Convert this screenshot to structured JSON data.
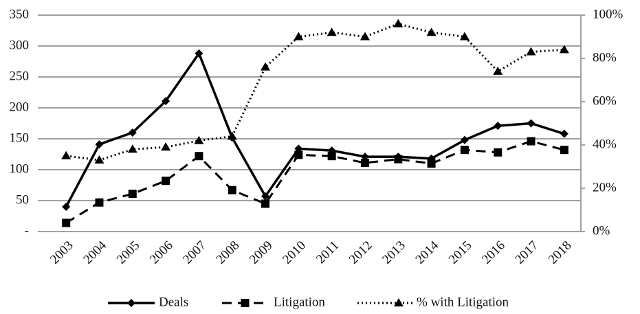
{
  "chart_data": {
    "type": "line",
    "categories": [
      "2003",
      "2004",
      "2005",
      "2006",
      "2007",
      "2008",
      "2009",
      "2010",
      "2011",
      "2012",
      "2013",
      "2014",
      "2015",
      "2016",
      "2017",
      "2018"
    ],
    "series": [
      {
        "name": "Deals",
        "color": "#000000",
        "line_style": "solid",
        "marker": "diamond",
        "axis": "y",
        "values": [
          40,
          141,
          160,
          211,
          288,
          152,
          57,
          134,
          131,
          121,
          121,
          118,
          148,
          171,
          175,
          158
        ]
      },
      {
        "name": "Litigation",
        "color": "#000000",
        "line_style": "dashed",
        "marker": "square",
        "axis": "y",
        "values": [
          14,
          47,
          61,
          82,
          122,
          67,
          45,
          124,
          122,
          111,
          117,
          110,
          132,
          128,
          146,
          132
        ]
      },
      {
        "name": "% with Litigation",
        "color": "#000000",
        "line_style": "dotted",
        "marker": "triangle",
        "axis": "y2",
        "values": [
          35,
          33,
          38,
          39,
          42,
          44,
          76,
          90,
          92,
          90,
          96,
          92,
          90,
          74,
          83,
          84
        ]
      }
    ],
    "ylim": [
      0,
      350
    ],
    "yticks": [
      {
        "value": 0,
        "label": "-"
      },
      50,
      100,
      150,
      200,
      250,
      300,
      350
    ],
    "y2lim": [
      0,
      100
    ],
    "y2ticks": [
      {
        "value": 0,
        "label": "0%"
      },
      {
        "value": 20,
        "label": "20%"
      },
      {
        "value": 40,
        "label": "40%"
      },
      {
        "value": 60,
        "label": "60%"
      },
      {
        "value": 80,
        "label": "80%"
      },
      {
        "value": 100,
        "label": "100%"
      }
    ],
    "grid": true,
    "legend": "bottom"
  }
}
